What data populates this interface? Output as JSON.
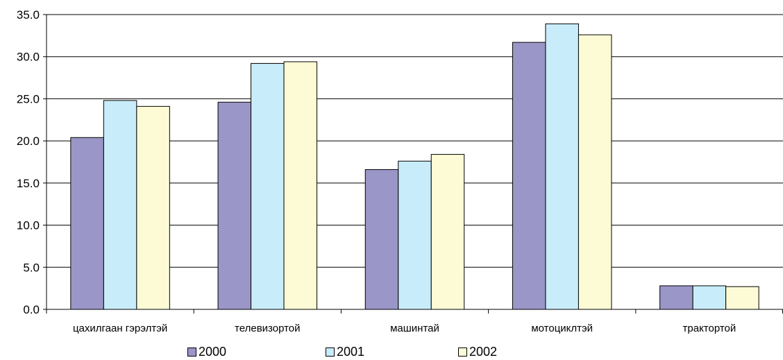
{
  "chart_data": {
    "type": "bar",
    "categories": [
      "цахилгаан гэрэлтэй",
      "телевизортой",
      "машинтай",
      "мотоциклтэй",
      "трактортой"
    ],
    "series": [
      {
        "name": "2000",
        "values": [
          20.4,
          24.6,
          16.6,
          31.7,
          2.8
        ],
        "color": "#9a96c8"
      },
      {
        "name": "2001",
        "values": [
          24.8,
          29.2,
          17.6,
          33.9,
          2.8
        ],
        "color": "#c8ecfa"
      },
      {
        "name": "2002",
        "values": [
          24.1,
          29.4,
          18.4,
          32.6,
          2.7
        ],
        "color": "#fdfbd6"
      }
    ],
    "yticks": [
      "0.0",
      "5.0",
      "10.0",
      "15.0",
      "20.0",
      "25.0",
      "30.0",
      "35.0"
    ],
    "ylim": [
      0,
      35
    ],
    "grid": true,
    "legend_position": "bottom"
  }
}
